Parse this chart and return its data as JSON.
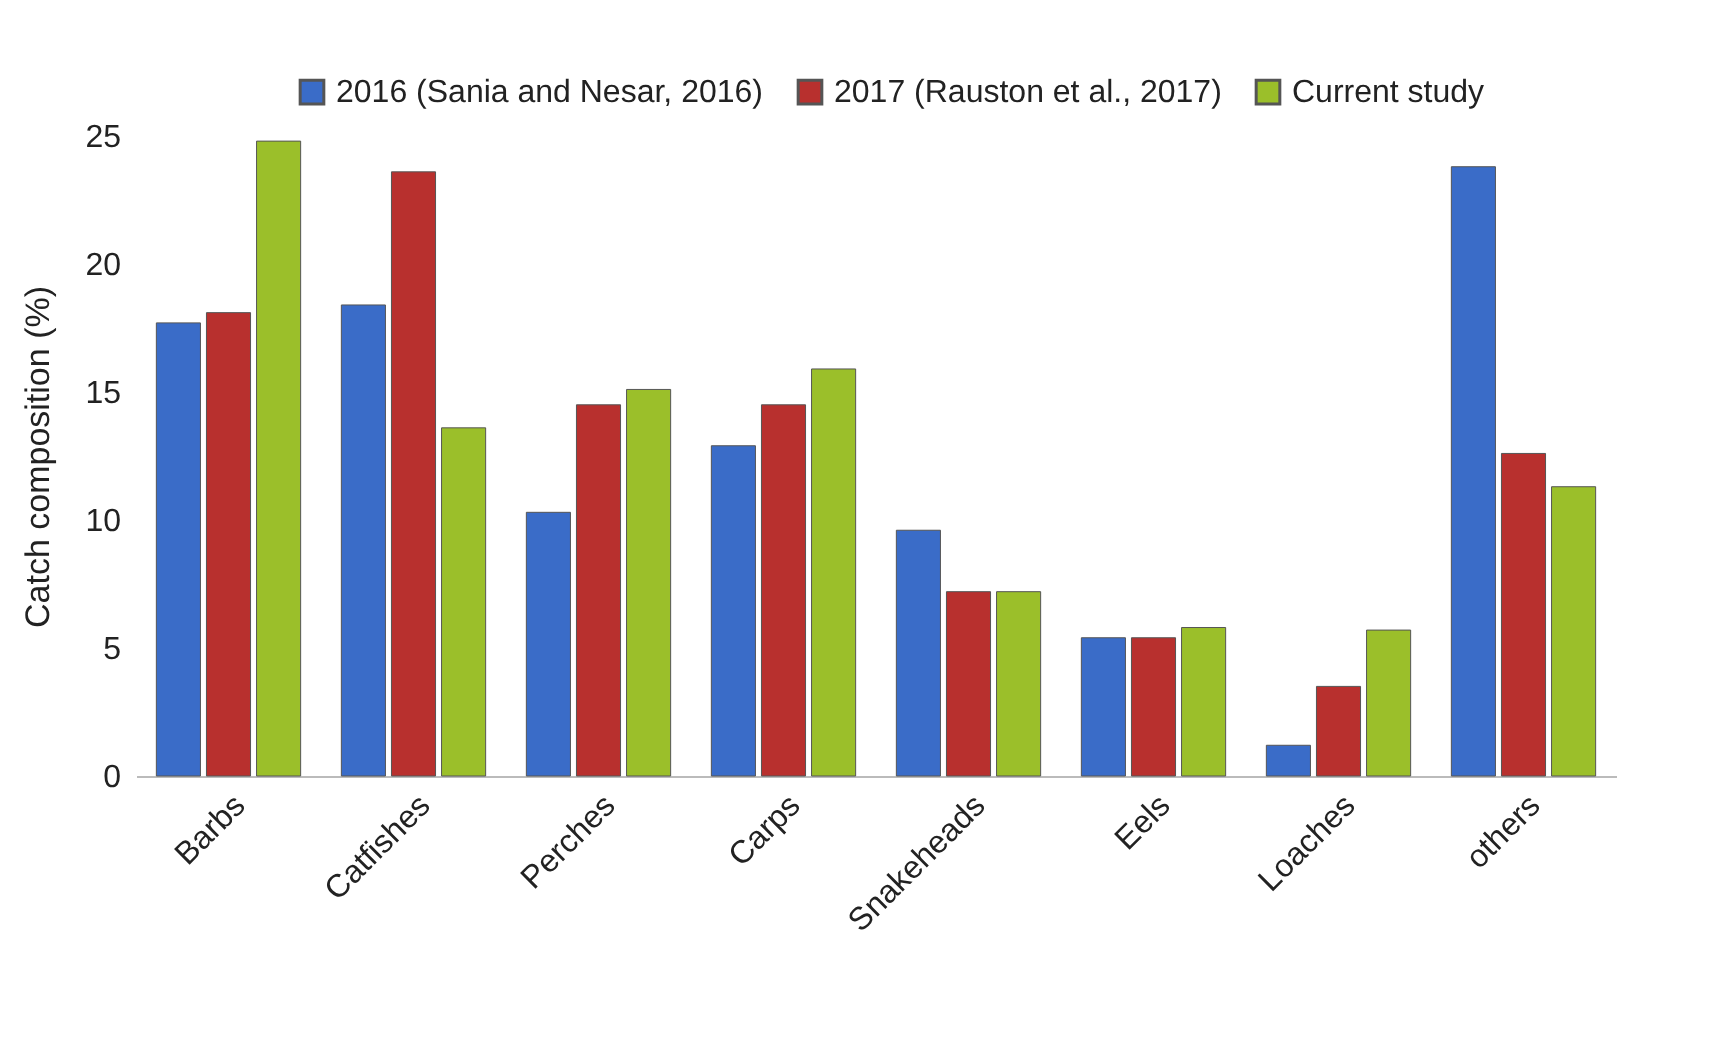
{
  "chart_data": {
    "type": "bar",
    "ylabel": "Catch composition (%)",
    "categories": [
      "Barbs",
      "Catfishes",
      "Perches",
      "Carps",
      "Snakeheads",
      "Eels",
      "Loaches",
      "others"
    ],
    "series": [
      {
        "name": "2016 (Sania and Nesar, 2016)",
        "color": "#3a6cc8",
        "values": [
          17.7,
          18.4,
          10.3,
          12.9,
          9.6,
          5.4,
          1.2,
          23.8
        ]
      },
      {
        "name": "2017 (Rauston et al., 2017)",
        "color": "#b8302e",
        "values": [
          18.1,
          23.6,
          14.5,
          14.5,
          7.2,
          5.4,
          3.5,
          12.6
        ]
      },
      {
        "name": "Current study",
        "color": "#9bbf2a",
        "values": [
          24.8,
          13.6,
          15.1,
          15.9,
          7.2,
          5.8,
          5.7,
          11.3
        ]
      }
    ],
    "ylim": [
      0,
      25
    ],
    "yticks": [
      0,
      5,
      10,
      15,
      20,
      25
    ],
    "grid": false,
    "legend": "top"
  }
}
